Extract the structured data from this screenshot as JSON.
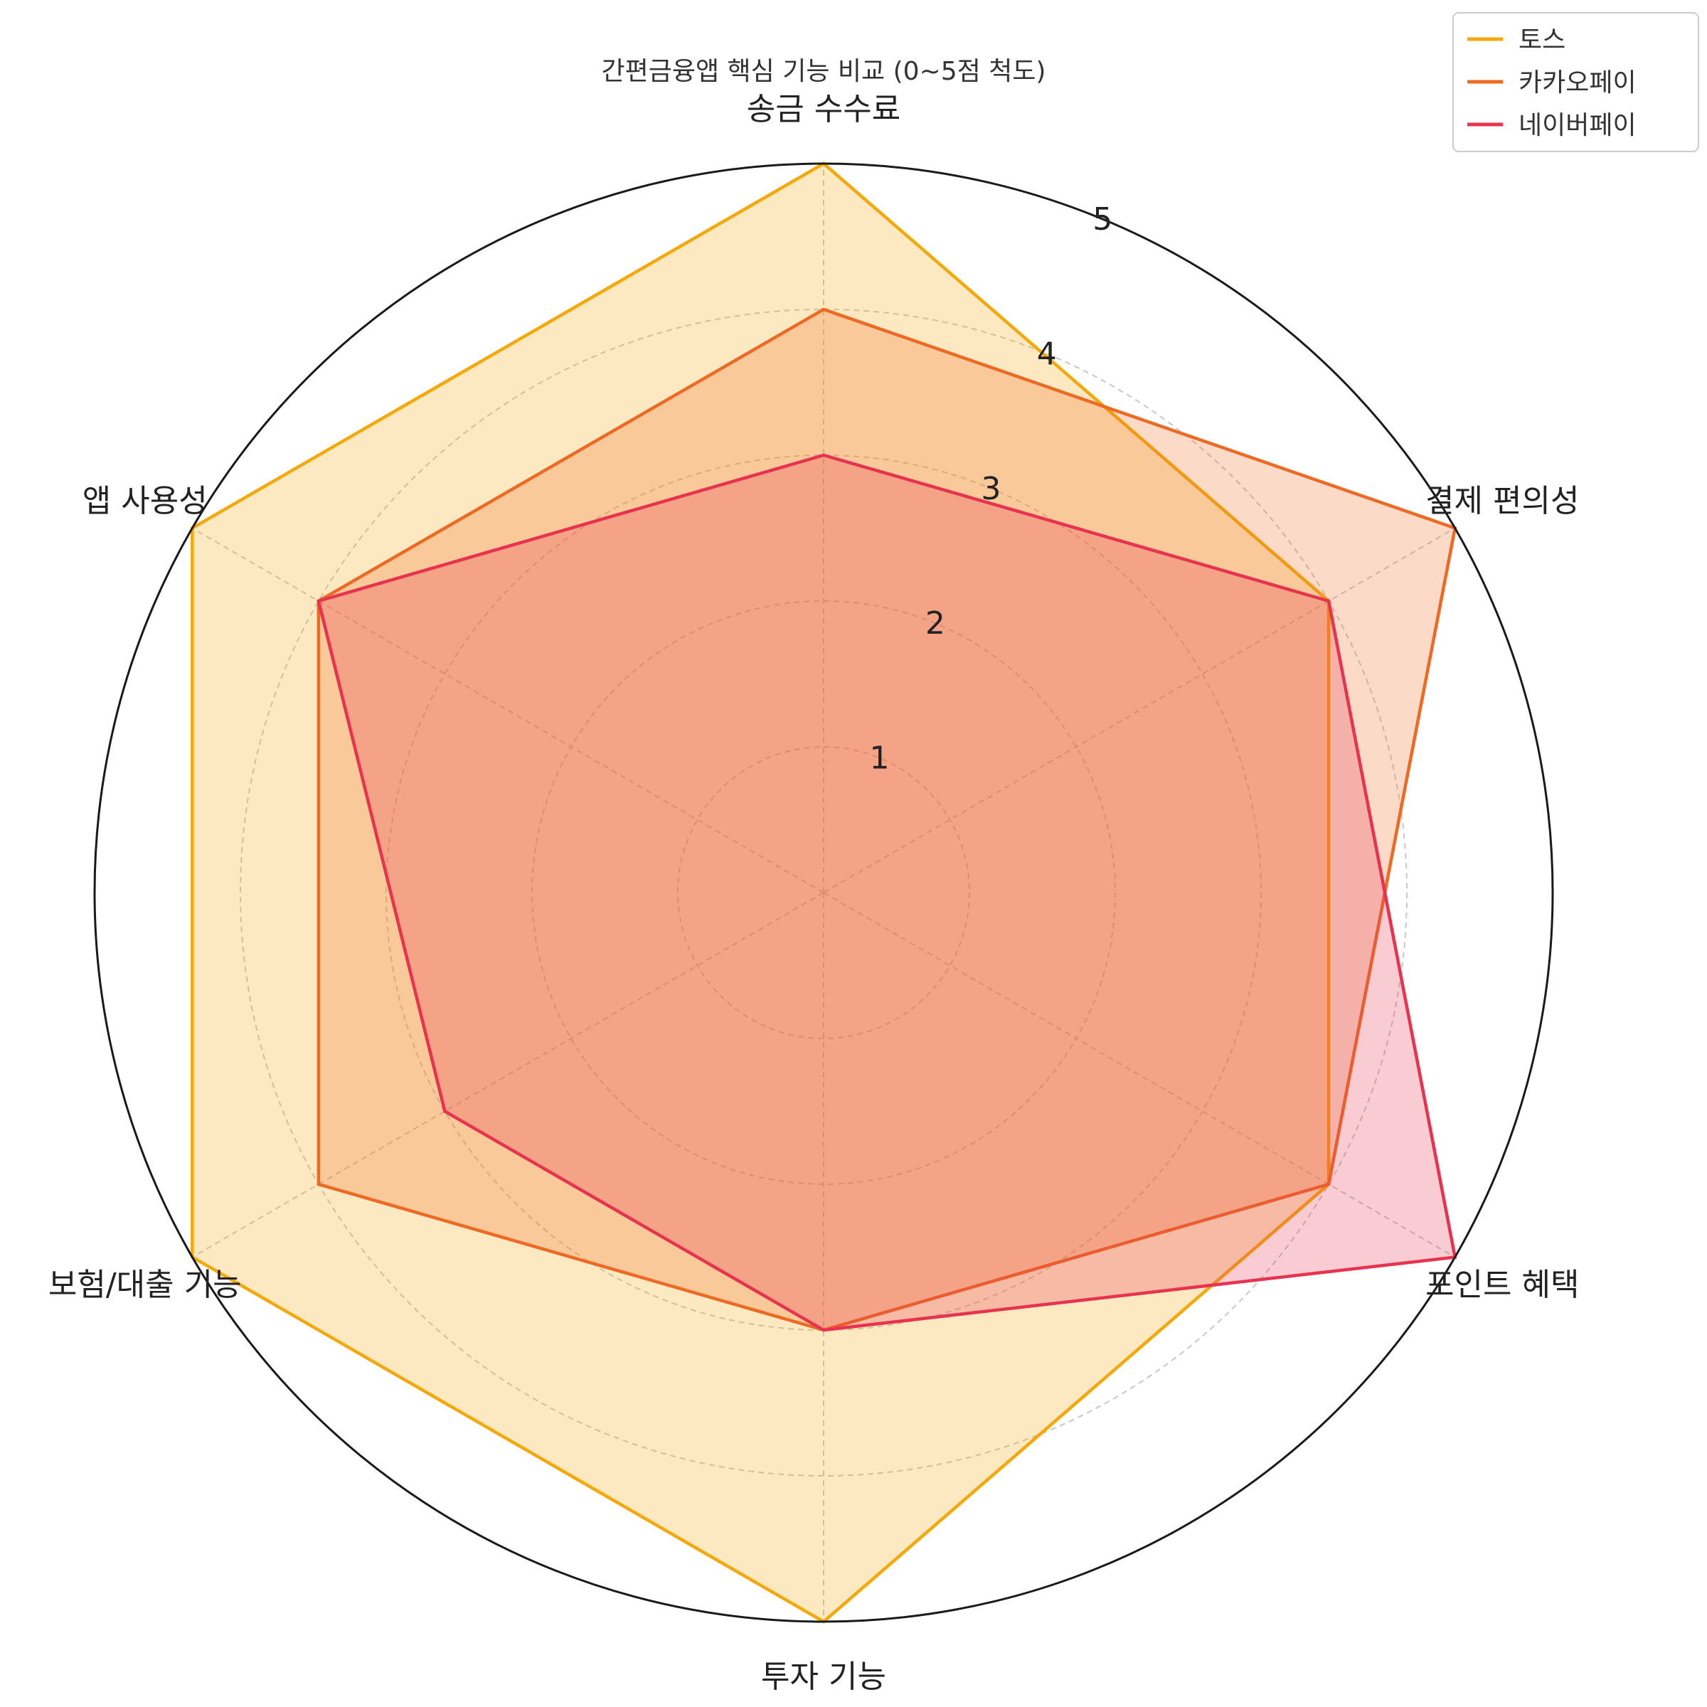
{
  "chart_data": {
    "type": "radar",
    "title": "간편금융앱 핵심 기능 비교 (0~5점 척도)",
    "categories": [
      "송금 수수료",
      "결제 편의성",
      "포인트 혜택",
      "투자 기능",
      "보험/대출 기능",
      "앱 사용성"
    ],
    "rlim": [
      0,
      5
    ],
    "rticks": [
      1,
      2,
      3,
      4,
      5
    ],
    "grid": true,
    "legend_position": "top-right",
    "series": [
      {
        "name": "토스",
        "values": [
          5,
          4,
          4,
          5,
          5,
          5
        ],
        "color": "#F5A80A"
      },
      {
        "name": "카카오페이",
        "values": [
          4,
          5,
          4,
          3,
          4,
          4
        ],
        "color": "#EE6A24"
      },
      {
        "name": "네이버페이",
        "values": [
          3,
          4,
          5,
          3,
          3,
          4
        ],
        "color": "#E8334F"
      }
    ]
  }
}
